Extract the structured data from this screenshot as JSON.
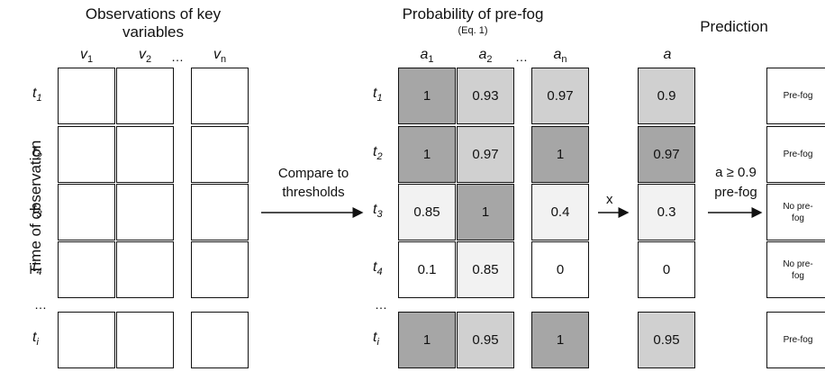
{
  "titles": {
    "observations": "Observations of key variables",
    "probability": "Probability of pre-fog",
    "probability_eq": "(Eq. 1)",
    "prediction": "Prediction"
  },
  "y_axis_label": "Time of observation",
  "obs_columns": [
    {
      "base": "v",
      "sub": "1"
    },
    {
      "base": "v",
      "sub": "2"
    },
    {
      "base": "v",
      "sub": "n"
    }
  ],
  "prob_columns": [
    {
      "base": "a",
      "sub": "1"
    },
    {
      "base": "a",
      "sub": "2"
    },
    {
      "base": "a",
      "sub": "n"
    }
  ],
  "combined_column": "a",
  "ellipsis": "…",
  "rows": [
    {
      "base": "t",
      "sub": "1"
    },
    {
      "base": "t",
      "sub": "2"
    },
    {
      "base": "t",
      "sub": "3"
    },
    {
      "base": "t",
      "sub": "4"
    },
    {
      "base": "t",
      "sub": "i"
    }
  ],
  "prob_values": [
    [
      "1",
      "0.93",
      "0.97"
    ],
    [
      "1",
      "0.97",
      "1"
    ],
    [
      "0.85",
      "1",
      "0.4"
    ],
    [
      "0.1",
      "0.85",
      "0"
    ],
    [
      "1",
      "0.95",
      "1"
    ]
  ],
  "combined_values": [
    "0.9",
    "0.97",
    "0.3",
    "0",
    "0.95"
  ],
  "predictions": [
    "Pre-fog",
    "Pre-fog",
    "No pre-fog",
    "No pre-fog",
    "Pre-fog"
  ],
  "arrow1_label": "Compare to thresholds",
  "arrow2_label": "x",
  "arrow3_label_top": "a ≥ 0.9",
  "arrow3_label_bottom": "pre-fog",
  "colors": {
    "shade_1": "#a6a6a6",
    "shade_high": "#d0d0d0",
    "shade_mid": "#f2f2f2",
    "shade_none": "#ffffff",
    "border": "#111111"
  }
}
